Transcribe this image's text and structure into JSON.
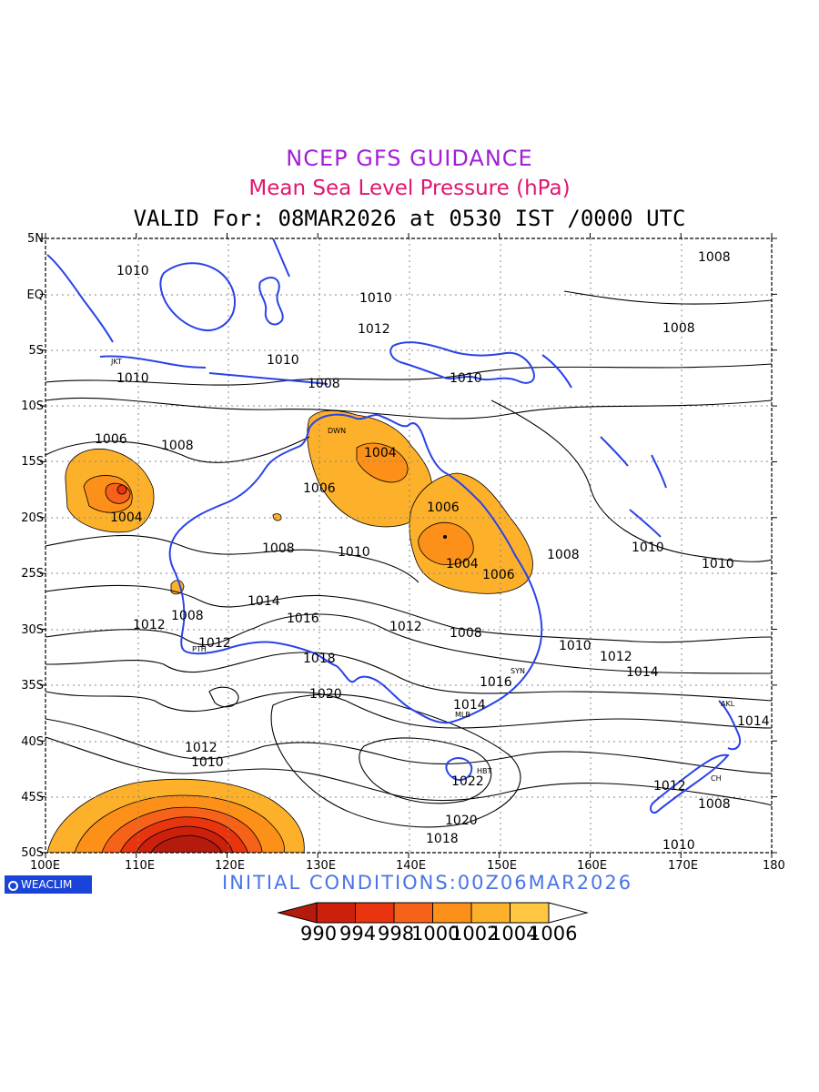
{
  "titles": {
    "line1": "NCEP GFS GUIDANCE",
    "line2": "Mean Sea Level Pressure (hPa)",
    "line3": "VALID For: 08MAR2026 at 0530 IST /0000 UTC"
  },
  "axes": {
    "lat_labels": [
      "5N",
      "EQ",
      "5S",
      "10S",
      "15S",
      "20S",
      "25S",
      "30S",
      "35S",
      "40S",
      "45S",
      "50S"
    ],
    "lon_labels": [
      "100E",
      "110E",
      "120E",
      "130E",
      "140E",
      "150E",
      "160E",
      "170E",
      "180"
    ]
  },
  "footer": {
    "initial_conditions": "INITIAL CONDITIONS:00Z06MAR2026",
    "logo": "WEACLIM"
  },
  "colorbar": {
    "labels": [
      "990",
      "994",
      "998",
      "1000",
      "1002",
      "1004",
      "1006"
    ],
    "colors": [
      "#b51a0e",
      "#cc1f0c",
      "#e8340f",
      "#f7621b",
      "#fc9018",
      "#fdb02a",
      "#ffc642",
      "#ffffff"
    ]
  },
  "map_data": {
    "cities": [
      "JKT",
      "DWN",
      "PTH",
      "SYN",
      "MLB",
      "HBT",
      "AKL",
      "CH"
    ],
    "contour_labels": [
      "1010",
      "1008",
      "1006",
      "1004",
      "1012",
      "1014",
      "1016",
      "1018",
      "1020",
      "1022"
    ],
    "low_centers": [
      {
        "name": "low-1004-west",
        "label": "1004",
        "lon": 108.3,
        "lat": -17.5
      },
      {
        "name": "low-1004-north-australia",
        "label": "1004",
        "lon": 138.5,
        "lat": -15.8
      },
      {
        "name": "low-1004-qld",
        "label": "1004",
        "lon": 147.0,
        "lat": -22.0
      }
    ],
    "high_centers": [
      {
        "name": "high-1022",
        "label": "1022",
        "lon": 143.5,
        "lat": -43.0
      }
    ]
  }
}
